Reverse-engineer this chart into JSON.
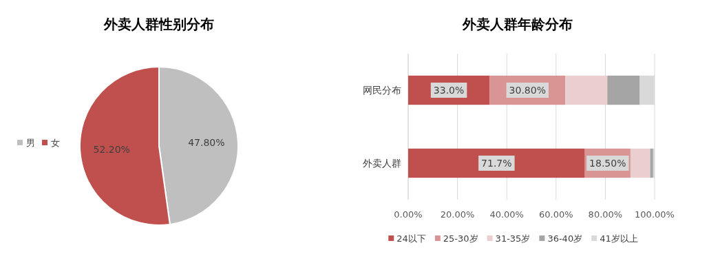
{
  "chart_data": [
    {
      "type": "pie",
      "title": "外卖人群性别分布",
      "categories": [
        "男",
        "女"
      ],
      "values": [
        47.8,
        52.2
      ],
      "colors": [
        "#bfbfbf",
        "#c0504d"
      ],
      "value_labels": [
        "47.80%",
        "52.20%"
      ],
      "legend": "left"
    },
    {
      "type": "bar",
      "orientation": "horizontal",
      "stacked": true,
      "title": "外卖人群年龄分布",
      "categories": [
        "网民分布",
        "外卖人群"
      ],
      "xlim": [
        0,
        100
      ],
      "xticks": [
        {
          "value": 0,
          "label": "0.00%"
        },
        {
          "value": 20,
          "label": "20.00%"
        },
        {
          "value": 40,
          "label": "40.00%"
        },
        {
          "value": 60,
          "label": "60.00%"
        },
        {
          "value": 80,
          "label": "80.00%"
        },
        {
          "value": 100,
          "label": "100.00%"
        }
      ],
      "grid": "x",
      "legend": "bottom",
      "series": [
        {
          "name": "24以下",
          "color": "#c0504d",
          "values": [
            33.0,
            71.7
          ],
          "value_labels": [
            "33.0%",
            "71.7%"
          ]
        },
        {
          "name": "25-30岁",
          "color": "#d99594",
          "values": [
            30.8,
            18.5
          ],
          "value_labels": [
            "30.80%",
            "18.50%"
          ]
        },
        {
          "name": "31-35岁",
          "color": "#ebcfd0",
          "values": [
            17.0,
            8.0
          ]
        },
        {
          "name": "36-40岁",
          "color": "#a5a5a5",
          "values": [
            13.2,
            1.2
          ]
        },
        {
          "name": "41岁以上",
          "color": "#d9d9d9",
          "values": [
            6.0,
            0.6
          ]
        }
      ]
    }
  ]
}
